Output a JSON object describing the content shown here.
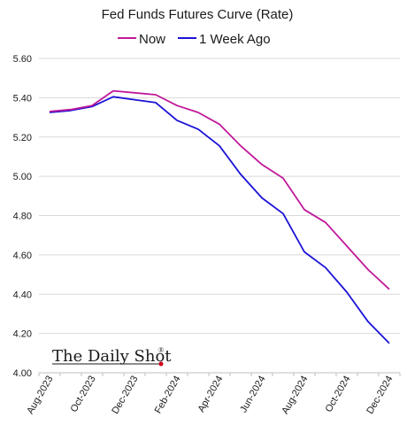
{
  "chart_data": {
    "type": "line",
    "title": "Fed Funds Futures Curve (Rate)",
    "ylim": [
      4.0,
      5.6
    ],
    "yticks": [
      "4.00",
      "4.20",
      "4.40",
      "4.60",
      "4.80",
      "5.00",
      "5.20",
      "5.40",
      "5.60"
    ],
    "xtick_labels": [
      "Aug-2023",
      "Oct-2023",
      "Dec-2023",
      "Feb-2024",
      "Apr-2024",
      "Jun-2024",
      "Aug-2024",
      "Oct-2024",
      "Dec-2024"
    ],
    "grid": "horizontal",
    "legend_position": "top",
    "x": [
      "Aug-2023",
      "Sep-2023",
      "Oct-2023",
      "Nov-2023",
      "Dec-2023",
      "Jan-2024",
      "Feb-2024",
      "Mar-2024",
      "Apr-2024",
      "May-2024",
      "Jun-2024",
      "Jul-2024",
      "Aug-2024",
      "Sep-2024",
      "Oct-2024",
      "Nov-2024",
      "Dec-2024"
    ],
    "series": [
      {
        "name": "Now",
        "color": "#c0199a",
        "values": [
          5.33,
          5.34,
          5.36,
          5.435,
          5.425,
          5.415,
          5.36,
          5.325,
          5.265,
          5.155,
          5.06,
          4.99,
          4.83,
          4.765,
          4.645,
          4.525,
          4.425
        ]
      },
      {
        "name": "1 Week Ago",
        "color": "#1b12d6",
        "values": [
          5.325,
          5.335,
          5.355,
          5.405,
          5.39,
          5.375,
          5.285,
          5.24,
          5.155,
          5.01,
          4.89,
          4.81,
          4.615,
          4.535,
          4.41,
          4.26,
          4.15
        ]
      }
    ]
  },
  "watermark": {
    "text": "The Daily Shot",
    "mark": "®"
  }
}
